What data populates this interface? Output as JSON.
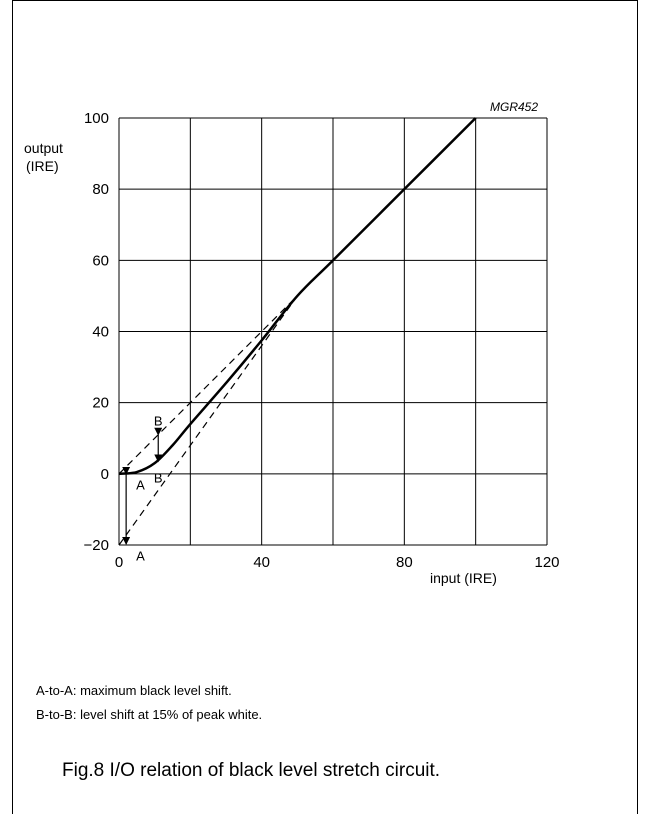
{
  "chart_data": {
    "type": "line",
    "code": "MGR452",
    "ylabel": [
      "output",
      "(IRE)"
    ],
    "xlabel": "input (IRE)",
    "xlim": [
      0,
      120
    ],
    "ylim": [
      -20,
      100
    ],
    "x_ticks": [
      0,
      40,
      80,
      120
    ],
    "y_ticks": [
      100,
      80,
      60,
      40,
      20,
      0,
      -20
    ],
    "grid": true,
    "main_curve": {
      "x": [
        0,
        5,
        10,
        15,
        20,
        30,
        40,
        50,
        60,
        80,
        100
      ],
      "y": [
        0,
        0.5,
        3,
        8,
        14,
        25.5,
        37.5,
        50,
        60,
        80,
        100
      ]
    },
    "dashed_lines": [
      {
        "x": [
          0,
          50
        ],
        "y": [
          0,
          50
        ]
      },
      {
        "x": [
          0,
          50
        ],
        "y": [
          -20,
          50
        ]
      }
    ],
    "annotations": {
      "A_arrow": {
        "x": 2,
        "y_from": 0,
        "y_to": -20
      },
      "B_arrow": {
        "x": 11,
        "y_from": 11,
        "y_to": 3.5
      },
      "labels": [
        {
          "text": "A",
          "x": 6,
          "y": -3
        },
        {
          "text": "A",
          "x": 6,
          "y": -23
        },
        {
          "text": "B",
          "x": 11,
          "y": 15
        },
        {
          "text": "B",
          "x": 11,
          "y": -1
        }
      ]
    }
  },
  "notes": [
    "A-to-A: maximum black level shift.",
    "B-to-B: level shift at 15% of peak white."
  ],
  "caption": "Fig.8  I/O relation of black level stretch circuit."
}
